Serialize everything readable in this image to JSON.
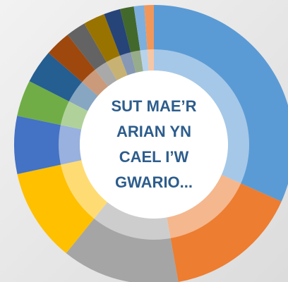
{
  "chart_data": {
    "type": "pie",
    "donut": true,
    "title": "SUT MAE’R ARIAN YN CAEL I’W GWARIO...",
    "categories": [
      null,
      null,
      null,
      null,
      null,
      null,
      null,
      null,
      null,
      null,
      null,
      null,
      null,
      null
    ],
    "values": [
      31.7,
      15.5,
      13.6,
      10.8,
      6.7,
      4.2,
      3.9,
      3.0,
      2.3,
      2.5,
      1.9,
      1.6,
      1.2,
      1.1
    ],
    "colors": [
      "#5b9bd5",
      "#ed7d31",
      "#a5a5a5",
      "#ffc000",
      "#4472c4",
      "#70ad47",
      "#255e91",
      "#9e480e",
      "#636363",
      "#997300",
      "#264478",
      "#43682b",
      "#7cafdd",
      "#f1975a"
    ]
  }
}
